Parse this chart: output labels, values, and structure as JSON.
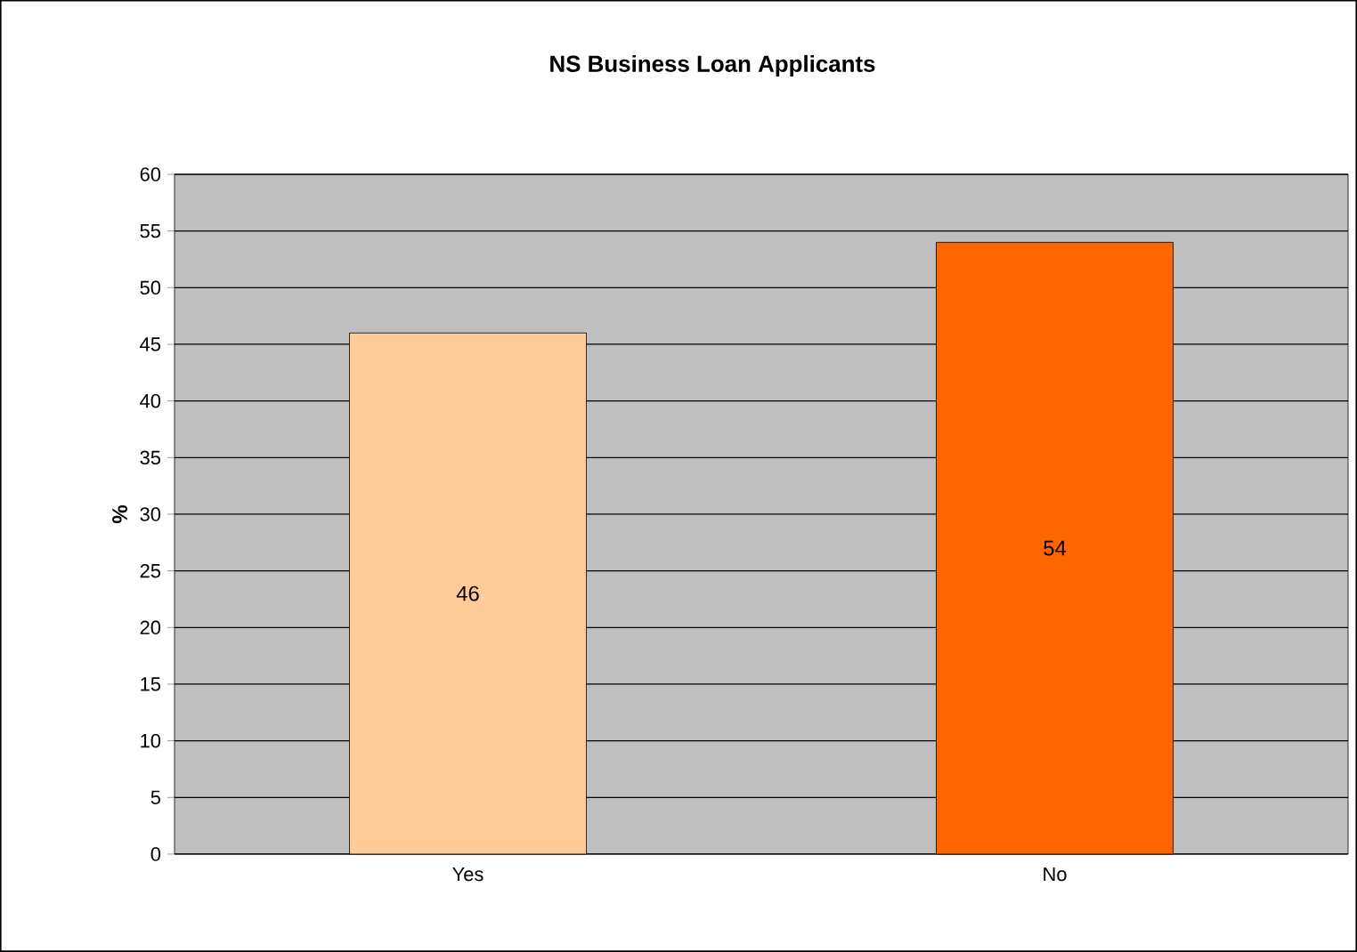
{
  "chart_data": {
    "type": "bar",
    "title": "NS Business Loan Applicants",
    "ylabel": "%",
    "categories": [
      "Yes",
      "No"
    ],
    "values": [
      46,
      54
    ],
    "colors": [
      "#ffcc99",
      "#ff6600"
    ],
    "ylim": [
      0,
      60
    ],
    "yticks": [
      0,
      5,
      10,
      15,
      20,
      25,
      30,
      35,
      40,
      45,
      50,
      55,
      60
    ],
    "grid": "y",
    "data_labels": true
  }
}
